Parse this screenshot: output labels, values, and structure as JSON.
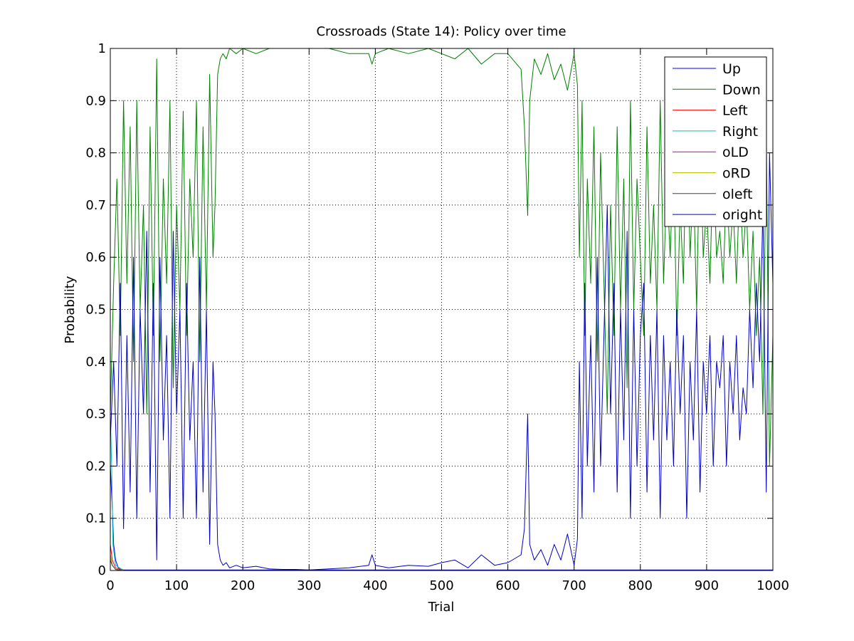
{
  "chart_data": {
    "type": "line",
    "title": "Crossroads (State 14): Policy over time",
    "xlabel": "Trial",
    "ylabel": "Probability",
    "xlim": [
      0,
      1000
    ],
    "ylim": [
      0,
      1
    ],
    "xticks": [
      0,
      100,
      200,
      300,
      400,
      500,
      600,
      700,
      800,
      900,
      1000
    ],
    "yticks": [
      0,
      0.1,
      0.2,
      0.3,
      0.4,
      0.5,
      0.6,
      0.7,
      0.8,
      0.9,
      1
    ],
    "xtick_labels": [
      "0",
      "100",
      "200",
      "300",
      "400",
      "500",
      "600",
      "700",
      "800",
      "900",
      "1000"
    ],
    "ytick_labels": [
      "0",
      "0.1",
      "0.2",
      "0.3",
      "0.4",
      "0.5",
      "0.6",
      "0.7",
      "0.8",
      "0.9",
      "1"
    ],
    "grid": true,
    "legend_position": "top-right",
    "series": [
      {
        "name": "Up",
        "color": "#0000ff",
        "x": [
          0,
          3,
          5,
          8,
          12,
          20,
          100,
          300,
          500,
          700,
          850,
          1000
        ],
        "y": [
          0.2,
          0.12,
          0.05,
          0.02,
          0.005,
          0.001,
          0.001,
          0.001,
          0.001,
          0.001,
          0.001,
          0.001
        ]
      },
      {
        "name": "Down",
        "color": "#008000",
        "x": [
          0,
          5,
          10,
          15,
          20,
          25,
          30,
          35,
          40,
          45,
          50,
          55,
          60,
          65,
          70,
          75,
          80,
          85,
          90,
          95,
          100,
          105,
          110,
          115,
          120,
          125,
          130,
          135,
          140,
          145,
          150,
          155,
          158,
          162,
          166,
          170,
          175,
          180,
          190,
          200,
          220,
          240,
          260,
          280,
          300,
          330,
          360,
          390,
          395,
          400,
          420,
          450,
          480,
          500,
          520,
          540,
          560,
          580,
          600,
          620,
          625,
          630,
          633,
          640,
          650,
          660,
          670,
          680,
          690,
          700,
          705,
          708,
          712,
          716,
          720,
          725,
          730,
          735,
          740,
          745,
          750,
          755,
          760,
          765,
          770,
          775,
          780,
          785,
          790,
          795,
          800,
          805,
          810,
          815,
          820,
          825,
          830,
          835,
          840,
          845,
          850,
          855,
          860,
          865,
          870,
          875,
          880,
          885,
          890,
          895,
          900,
          905,
          910,
          915,
          920,
          925,
          930,
          935,
          940,
          945,
          950,
          955,
          960,
          965,
          970,
          975,
          980,
          985,
          990,
          995,
          1000
        ],
        "y": [
          0.3,
          0.55,
          0.75,
          0.45,
          0.9,
          0.55,
          0.85,
          0.4,
          0.9,
          0.5,
          0.7,
          0.3,
          0.85,
          0.45,
          0.98,
          0.4,
          0.75,
          0.55,
          0.9,
          0.35,
          0.7,
          0.5,
          0.88,
          0.45,
          0.75,
          0.6,
          0.9,
          0.4,
          0.85,
          0.5,
          0.95,
          0.6,
          0.7,
          0.95,
          0.98,
          0.99,
          0.98,
          1.0,
          0.99,
          1.0,
          0.99,
          1.0,
          1.0,
          1.0,
          1.0,
          1.0,
          0.99,
          0.99,
          0.97,
          0.99,
          1.0,
          0.99,
          1.0,
          0.99,
          0.98,
          1.0,
          0.97,
          0.99,
          0.99,
          0.96,
          0.85,
          0.68,
          0.9,
          0.98,
          0.95,
          0.99,
          0.94,
          0.97,
          0.92,
          0.99,
          0.93,
          0.6,
          0.9,
          0.45,
          0.75,
          0.55,
          0.85,
          0.4,
          0.8,
          0.55,
          0.3,
          0.7,
          0.45,
          0.85,
          0.5,
          0.75,
          0.35,
          0.9,
          0.5,
          0.75,
          0.6,
          0.45,
          0.85,
          0.55,
          0.7,
          0.5,
          0.9,
          0.55,
          0.75,
          0.6,
          0.8,
          0.45,
          0.7,
          0.55,
          0.9,
          0.6,
          0.75,
          0.5,
          0.85,
          0.6,
          0.7,
          0.55,
          0.8,
          0.6,
          0.65,
          0.55,
          0.75,
          0.6,
          0.7,
          0.55,
          0.75,
          0.6,
          0.7,
          0.5,
          0.65,
          0.45,
          0.6,
          0.3,
          0.85,
          0.2,
          0.45
        ]
      },
      {
        "name": "Left",
        "color": "#ff0000",
        "x": [
          0,
          3,
          8,
          20,
          1000
        ],
        "y": [
          0.05,
          0.02,
          0.005,
          0.0,
          0.0
        ]
      },
      {
        "name": "Right",
        "color": "#00bfbf",
        "x": [
          0,
          2,
          4,
          8,
          20,
          1000
        ],
        "y": [
          0.3,
          0.2,
          0.05,
          0.01,
          0.0,
          0.0
        ]
      },
      {
        "name": "oLD",
        "color": "#bf00bf",
        "x": [
          0,
          3,
          8,
          20,
          1000
        ],
        "y": [
          0.03,
          0.01,
          0.002,
          0.0,
          0.0
        ]
      },
      {
        "name": "oRD",
        "color": "#bfbf00",
        "x": [
          0,
          3,
          8,
          20,
          1000
        ],
        "y": [
          0.03,
          0.01,
          0.002,
          0.0,
          0.0
        ]
      },
      {
        "name": "oleft",
        "color": "#404040",
        "x": [
          0,
          3,
          8,
          20,
          1000
        ],
        "y": [
          0.02,
          0.01,
          0.002,
          0.0,
          0.0
        ]
      },
      {
        "name": "oright",
        "color": "#0000bf",
        "x": [
          0,
          5,
          10,
          15,
          20,
          25,
          30,
          35,
          40,
          45,
          50,
          55,
          60,
          65,
          70,
          75,
          80,
          85,
          90,
          95,
          100,
          105,
          110,
          115,
          120,
          125,
          130,
          135,
          140,
          145,
          150,
          155,
          158,
          162,
          166,
          170,
          175,
          180,
          190,
          200,
          220,
          240,
          260,
          280,
          300,
          330,
          360,
          390,
          395,
          400,
          420,
          450,
          480,
          500,
          520,
          540,
          560,
          580,
          600,
          620,
          625,
          630,
          633,
          640,
          650,
          660,
          670,
          680,
          690,
          700,
          705,
          708,
          712,
          716,
          720,
          725,
          730,
          735,
          740,
          745,
          750,
          755,
          760,
          765,
          770,
          775,
          780,
          785,
          790,
          795,
          800,
          805,
          810,
          815,
          820,
          825,
          830,
          835,
          840,
          845,
          850,
          855,
          860,
          865,
          870,
          875,
          880,
          885,
          890,
          895,
          900,
          905,
          910,
          915,
          920,
          925,
          930,
          935,
          940,
          945,
          950,
          955,
          960,
          965,
          970,
          975,
          980,
          985,
          990,
          995,
          1000
        ],
        "y": [
          0.25,
          0.4,
          0.2,
          0.55,
          0.08,
          0.45,
          0.15,
          0.6,
          0.1,
          0.5,
          0.3,
          0.65,
          0.15,
          0.55,
          0.02,
          0.6,
          0.25,
          0.45,
          0.1,
          0.65,
          0.3,
          0.5,
          0.1,
          0.55,
          0.25,
          0.4,
          0.1,
          0.6,
          0.15,
          0.5,
          0.05,
          0.4,
          0.3,
          0.05,
          0.02,
          0.01,
          0.015,
          0.005,
          0.01,
          0.005,
          0.008,
          0.003,
          0.002,
          0.002,
          0.001,
          0.003,
          0.005,
          0.01,
          0.03,
          0.01,
          0.005,
          0.01,
          0.008,
          0.015,
          0.02,
          0.005,
          0.03,
          0.01,
          0.015,
          0.03,
          0.08,
          0.3,
          0.05,
          0.02,
          0.04,
          0.01,
          0.05,
          0.02,
          0.07,
          0.01,
          0.06,
          0.4,
          0.1,
          0.55,
          0.2,
          0.45,
          0.15,
          0.6,
          0.2,
          0.45,
          0.7,
          0.3,
          0.55,
          0.15,
          0.5,
          0.25,
          0.65,
          0.1,
          0.5,
          0.2,
          0.45,
          0.55,
          0.15,
          0.45,
          0.25,
          0.5,
          0.1,
          0.45,
          0.25,
          0.4,
          0.2,
          0.5,
          0.3,
          0.45,
          0.1,
          0.4,
          0.25,
          0.5,
          0.15,
          0.4,
          0.3,
          0.45,
          0.2,
          0.4,
          0.35,
          0.45,
          0.2,
          0.4,
          0.3,
          0.45,
          0.25,
          0.35,
          0.3,
          0.5,
          0.35,
          0.55,
          0.4,
          0.7,
          0.15,
          0.8,
          0.55
        ]
      }
    ]
  }
}
